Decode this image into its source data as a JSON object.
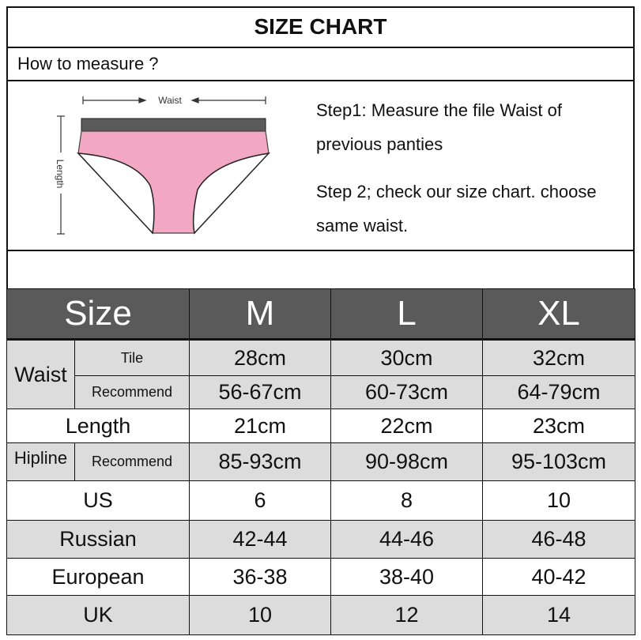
{
  "title": "SIZE CHART",
  "how_to": "How to measure ?",
  "diagram": {
    "waist_label": "Waist",
    "length_label": "Length",
    "colors": {
      "band": "#5a5a5a",
      "fabric": "#f2a8c2"
    }
  },
  "steps": {
    "step1": "Step1: Measure the file Waist of previous panties",
    "step2": "Step 2; check our size chart. choose same waist."
  },
  "table": {
    "header": {
      "label": "Size",
      "sizes": [
        "M",
        "L",
        "XL"
      ]
    },
    "waist": {
      "label": "Waist",
      "tile_label": "Tile",
      "tile": [
        "28cm",
        "30cm",
        "32cm"
      ],
      "rec_label": "Recommend",
      "rec": [
        "56-67cm",
        "60-73cm",
        "64-79cm"
      ]
    },
    "length": {
      "label": "Length",
      "values": [
        "21cm",
        "22cm",
        "23cm"
      ]
    },
    "hipline": {
      "label": "Hipline",
      "rec_label": "Recommend",
      "values": [
        "85-93cm",
        "90-98cm",
        "95-103cm"
      ]
    },
    "us": {
      "label": "US",
      "values": [
        "6",
        "8",
        "10"
      ]
    },
    "russian": {
      "label": "Russian",
      "values": [
        "42-44",
        "44-46",
        "46-48"
      ]
    },
    "european": {
      "label": "European",
      "values": [
        "36-38",
        "38-40",
        "40-42"
      ]
    },
    "uk": {
      "label": "UK",
      "values": [
        "10",
        "12",
        "14"
      ]
    }
  }
}
